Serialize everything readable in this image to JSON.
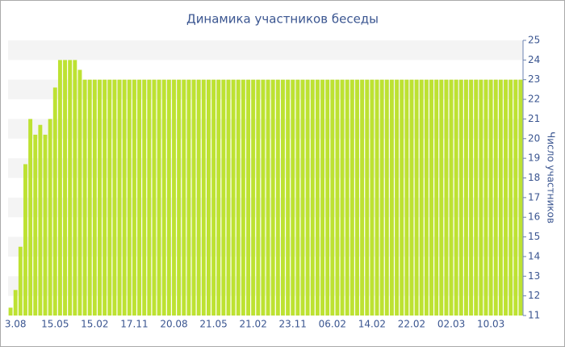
{
  "chart_data": {
    "type": "bar",
    "title": "Динамика участников беседы",
    "y_label": "Число участников",
    "categories": [
      null,
      "3.08",
      null,
      null,
      null,
      null,
      null,
      null,
      null,
      "15.05",
      null,
      null,
      null,
      null,
      null,
      null,
      null,
      "15.02",
      null,
      null,
      null,
      null,
      null,
      null,
      null,
      "17.11",
      null,
      null,
      null,
      null,
      null,
      null,
      null,
      "20.08",
      null,
      null,
      null,
      null,
      null,
      null,
      null,
      "21.05",
      null,
      null,
      null,
      null,
      null,
      null,
      null,
      "21.02",
      null,
      null,
      null,
      null,
      null,
      null,
      null,
      "23.11",
      null,
      null,
      null,
      null,
      null,
      null,
      null,
      "06.02",
      null,
      null,
      null,
      null,
      null,
      null,
      null,
      "14.02",
      null,
      null,
      null,
      null,
      null,
      null,
      null,
      "22.02",
      null,
      null,
      null,
      null,
      null,
      null,
      null,
      "02.03",
      null,
      null,
      null,
      null,
      null,
      null,
      null,
      "10.03",
      null,
      null,
      null,
      null,
      null,
      null
    ],
    "values": [
      11.4,
      12.3,
      14.5,
      18.7,
      21,
      20.2,
      20.7,
      20.2,
      21,
      22.6,
      24,
      24,
      24,
      24,
      23.5,
      23,
      23,
      23,
      23,
      23,
      23,
      23,
      23,
      23,
      23,
      23,
      23,
      23,
      23,
      23,
      23,
      23,
      23,
      23,
      23,
      23,
      23,
      23,
      23,
      23,
      23,
      23,
      23,
      23,
      23,
      23,
      23,
      23,
      23,
      23,
      23,
      23,
      23,
      23,
      23,
      23,
      23,
      23,
      23,
      23,
      23,
      23,
      23,
      23,
      23,
      23,
      23,
      23,
      23,
      23,
      23,
      23,
      23,
      23,
      23,
      23,
      23,
      23,
      23,
      23,
      23,
      23,
      23,
      23,
      23,
      23,
      23,
      23,
      23,
      23,
      23,
      23,
      23,
      23,
      23,
      23,
      23,
      23,
      23,
      23,
      23,
      23,
      23,
      23
    ],
    "color": "#bde232",
    "ylim": [
      11,
      25
    ],
    "yticks": [
      11,
      12,
      13,
      14,
      15,
      16,
      17,
      18,
      19,
      20,
      21,
      22,
      23,
      24,
      25
    ],
    "grid": true
  }
}
